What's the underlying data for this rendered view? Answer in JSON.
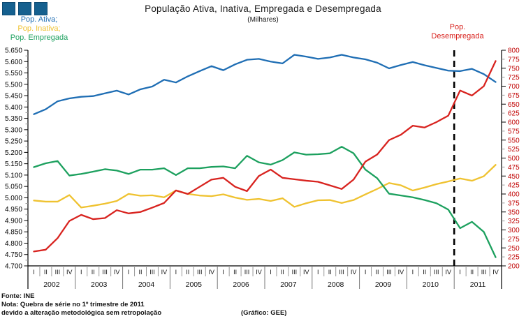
{
  "title": "População Ativa, Inativa, Empregada e Desempregada",
  "subtitle": "(Milhares)",
  "legend_left": {
    "ativa": "Pop. Ativa;",
    "inativa": "Pop. Inativa;",
    "empregada": "Pop. Empregada"
  },
  "legend_right": {
    "line1": "Pop.",
    "line2": "Desempregada"
  },
  "footer": {
    "fonte": "Fonte: INE",
    "nota_line1": "Nota: Quebra de série no 1º trimestre de 2011",
    "nota_line2": "devido a alteração metodológica sem retropolação",
    "credit": "(Gráfico: GEE)"
  },
  "logo": {
    "icon": "three-squares-logo",
    "color": "#15608F",
    "count": 3
  },
  "colors": {
    "ativa": "#1F6EB4",
    "inativa": "#EFC230",
    "empregada": "#1CA05E",
    "desempregada": "#D8231F",
    "right_axis_labels": "#C00000",
    "axis": "#000000",
    "minor_tick": "#999999",
    "quarter_divider": "#999999",
    "year_divider": "#777777",
    "break_line": "#000000"
  },
  "chart_data": {
    "type": "line",
    "title": "População Ativa, Inativa, Empregada e Desempregada",
    "subtitle": "(Milhares)",
    "grid": false,
    "years": [
      "2002",
      "2003",
      "2004",
      "2005",
      "2006",
      "2007",
      "2008",
      "2009",
      "2010",
      "2011"
    ],
    "quarter_labels": [
      "I",
      "II",
      "III",
      "IV"
    ],
    "left_axis": {
      "min": 4700,
      "max": 5650,
      "step": 50,
      "labels": [
        "5.650",
        "5.600",
        "5.550",
        "5.500",
        "5.450",
        "5.400",
        "5.350",
        "5.300",
        "5.250",
        "5.200",
        "5.150",
        "5.100",
        "5.050",
        "5.000",
        "4.950",
        "4.900",
        "4.850",
        "4.800",
        "4.750",
        "4.700"
      ]
    },
    "right_axis": {
      "min": 200,
      "max": 800,
      "step": 25,
      "labels": [
        "800",
        "775",
        "750",
        "725",
        "700",
        "675",
        "650",
        "625",
        "600",
        "575",
        "550",
        "525",
        "500",
        "475",
        "450",
        "425",
        "400",
        "375",
        "350",
        "325",
        "300",
        "275",
        "250",
        "225",
        "200"
      ]
    },
    "break_line": {
      "style": "dashed",
      "at": "2011-Q1",
      "boundary_index": 36
    },
    "series": [
      {
        "name": "Pop. Ativa",
        "axis": "left",
        "color": "#1F6EB4",
        "values": [
          5368,
          5390,
          5425,
          5438,
          5445,
          5448,
          5460,
          5472,
          5455,
          5478,
          5490,
          5520,
          5508,
          5535,
          5558,
          5580,
          5562,
          5588,
          5608,
          5612,
          5600,
          5592,
          5630,
          5622,
          5612,
          5618,
          5630,
          5618,
          5610,
          5595,
          5570,
          5585,
          5598,
          5584,
          5572,
          5560,
          5558,
          5568,
          5545,
          5510
        ]
      },
      {
        "name": "Pop. Inativa",
        "axis": "left",
        "color": "#EFC230",
        "values": [
          4988,
          4983,
          4983,
          5012,
          4957,
          4965,
          4974,
          4986,
          5017,
          5009,
          5011,
          5002,
          5032,
          5017,
          5010,
          5007,
          5015,
          5001,
          4991,
          4995,
          4986,
          4998,
          4960,
          4976,
          4989,
          4990,
          4977,
          4990,
          5015,
          5039,
          5065,
          5055,
          5032,
          5045,
          5060,
          5072,
          5085,
          5075,
          5095,
          5145
        ]
      },
      {
        "name": "Pop. Empregada",
        "axis": "left",
        "color": "#1CA05E",
        "values": [
          5135,
          5152,
          5162,
          5098,
          5105,
          5115,
          5126,
          5120,
          5105,
          5124,
          5124,
          5130,
          5100,
          5130,
          5130,
          5136,
          5138,
          5130,
          5185,
          5156,
          5146,
          5166,
          5200,
          5190,
          5192,
          5196,
          5225,
          5196,
          5124,
          5086,
          5018,
          5010,
          5002,
          4990,
          4976,
          4948,
          4866,
          4894,
          4850,
          4738
        ]
      },
      {
        "name": "Pop. Desempregada",
        "axis": "right",
        "color": "#D8231F",
        "values": [
          240,
          245,
          277,
          325,
          342,
          330,
          333,
          355,
          346,
          350,
          362,
          375,
          410,
          400,
          420,
          440,
          445,
          420,
          408,
          450,
          468,
          445,
          441,
          437,
          434,
          424,
          414,
          440,
          490,
          510,
          550,
          565,
          590,
          585,
          600,
          618,
          688,
          674,
          700,
          770
        ]
      }
    ]
  }
}
